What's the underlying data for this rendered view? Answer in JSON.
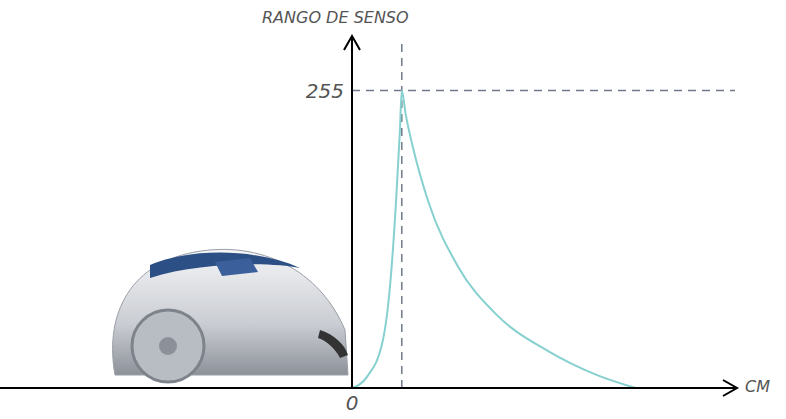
{
  "chart_data": {
    "type": "line",
    "y_label": "RANGO DE SENSO",
    "x_label": "CM",
    "x": [
      0,
      4,
      8,
      10,
      11.5,
      12.5,
      13,
      14,
      16,
      20,
      27.7,
      38,
      51,
      64,
      74
    ],
    "values": [
      0,
      10,
      40,
      90,
      160,
      220,
      255,
      235,
      205,
      159,
      104,
      62,
      32,
      11,
      0
    ],
    "color": "#86d0d0",
    "xlim": [
      0,
      100
    ],
    "ylim": [
      0,
      300
    ],
    "xticks": [
      0
    ],
    "yticks": [
      255
    ],
    "grid": true
  }
}
